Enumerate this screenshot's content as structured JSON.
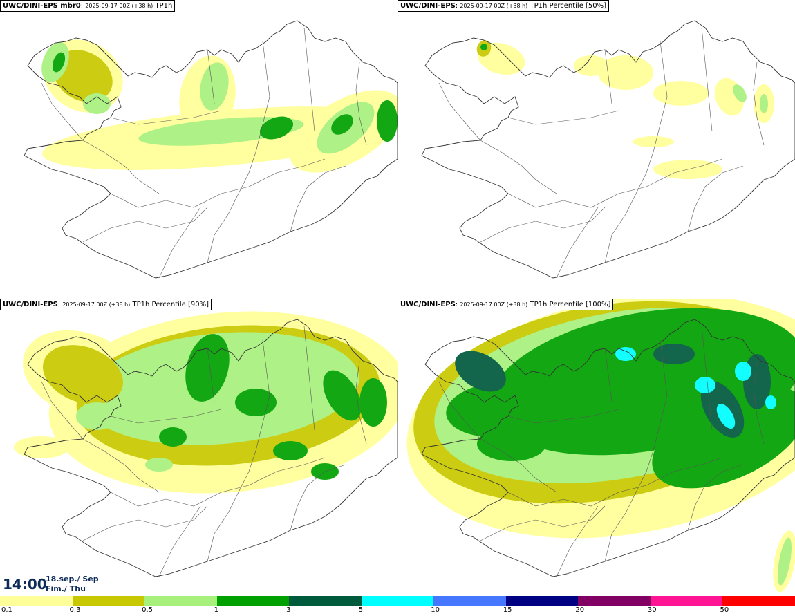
{
  "panels": [
    {
      "model": "UWC/DINI-EPS mbr0",
      "run": "2025-09-17 00Z (+38 h)",
      "field": "TP1h",
      "rain_coverage": "light"
    },
    {
      "model": "UWC/DINI-EPS",
      "run": "2025-09-17 00Z (+38 h)",
      "field": "TP1h Percentile [50%]",
      "rain_coverage": "sparse"
    },
    {
      "model": "UWC/DINI-EPS",
      "run": "2025-09-17 00Z (+38 h)",
      "field": "TP1h Percentile [90%]",
      "rain_coverage": "moderate"
    },
    {
      "model": "UWC/DINI-EPS",
      "run": "2025-09-17 00Z (+38 h)",
      "field": "TP1h Percentile [100%]",
      "rain_coverage": "heavy"
    }
  ],
  "valid_time": {
    "time": "14:00",
    "date": "18.sep./ Sep",
    "day": "Fim./ Thu"
  },
  "legend": {
    "colors": [
      "#ffff99",
      "#c8c800",
      "#a8f07c",
      "#00a000",
      "#005a3c",
      "#00ffff",
      "#4678ff",
      "#000082",
      "#820064",
      "#ff1493",
      "#ff0000"
    ],
    "labels": [
      "0.1",
      "0.3",
      "0.5",
      "1",
      "3",
      "5",
      "10",
      "15",
      "20",
      "30",
      "50"
    ]
  }
}
